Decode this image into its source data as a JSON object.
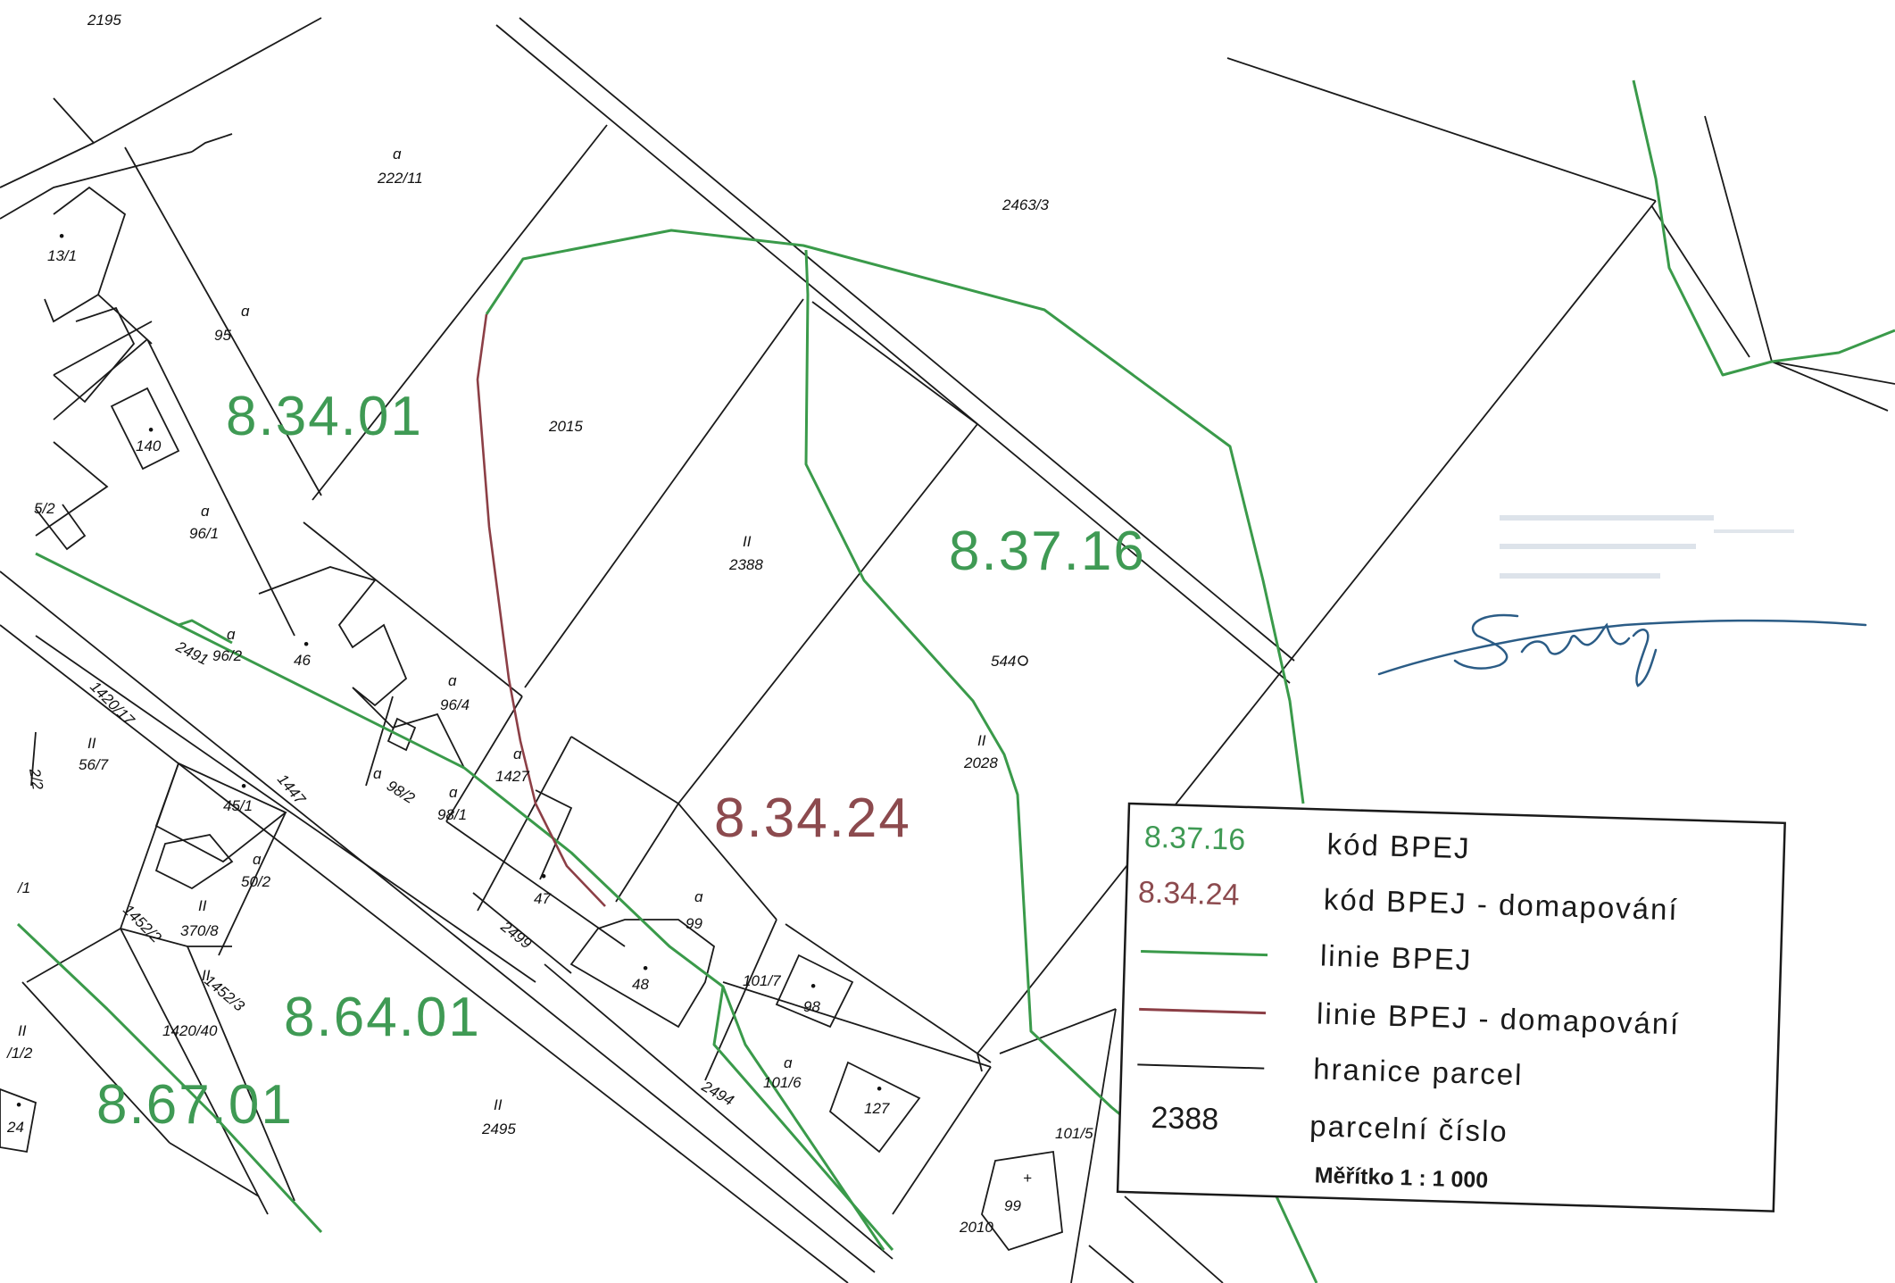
{
  "parcels": [
    {
      "id": "p2195",
      "label": "2195",
      "symbol": ""
    },
    {
      "id": "p222_11",
      "label": "222/11",
      "symbol": "ɑ"
    },
    {
      "id": "p2463_3",
      "label": "2463/3",
      "symbol": ""
    },
    {
      "id": "p13_1",
      "label": "13/1",
      "symbol": "•"
    },
    {
      "id": "p95",
      "label": "95",
      "symbol": "ɑ"
    },
    {
      "id": "p140",
      "label": "140",
      "symbol": "•"
    },
    {
      "id": "p2015",
      "label": "2015",
      "symbol": ""
    },
    {
      "id": "p96_1",
      "label": "96/1",
      "symbol": "ɑ"
    },
    {
      "id": "p2388",
      "label": "2388",
      "symbol": "II"
    },
    {
      "id": "p46",
      "label": "46",
      "symbol": "•"
    },
    {
      "id": "p96_2",
      "label": "96/2",
      "symbol": "ɑ"
    },
    {
      "id": "p96_4",
      "label": "96/4",
      "symbol": "ɑ"
    },
    {
      "id": "p1427",
      "label": "1427",
      "symbol": "ɑ"
    },
    {
      "id": "p2491",
      "label": "2491",
      "symbol": ""
    },
    {
      "id": "p1420_17",
      "label": "1420/17",
      "symbol": ""
    },
    {
      "id": "p56_7",
      "label": "56/7",
      "symbol": "II"
    },
    {
      "id": "p1447",
      "label": "1447",
      "symbol": ""
    },
    {
      "id": "p45_1",
      "label": "45/1",
      "symbol": "•"
    },
    {
      "id": "p98_2",
      "label": "98/2",
      "symbol": "ɑ"
    },
    {
      "id": "p98_1",
      "label": "98/1",
      "symbol": "ɑ"
    },
    {
      "id": "p2028",
      "label": "2028",
      "symbol": "II"
    },
    {
      "id": "p544",
      "label": "544",
      "symbol": ""
    },
    {
      "id": "p50_2",
      "label": "50/2",
      "symbol": "ɑ"
    },
    {
      "id": "p47",
      "label": "47",
      "symbol": "•"
    },
    {
      "id": "p99",
      "label": "99",
      "symbol": "ɑ"
    },
    {
      "id": "p370_8",
      "label": "370/8",
      "symbol": "II"
    },
    {
      "id": "p1452_2",
      "label": "1452/2",
      "symbol": ""
    },
    {
      "id": "p2499",
      "label": "2499",
      "symbol": ""
    },
    {
      "id": "p48",
      "label": "48",
      "symbol": "•"
    },
    {
      "id": "p101_7",
      "label": "101/7",
      "symbol": ""
    },
    {
      "id": "p98b",
      "label": "98",
      "symbol": "•"
    },
    {
      "id": "p1452_3",
      "label": "1452/3",
      "symbol": "II"
    },
    {
      "id": "p1420_40",
      "label": "1420/40",
      "symbol": ""
    },
    {
      "id": "p101_6",
      "label": "101/6",
      "symbol": "ɑ"
    },
    {
      "id": "p127",
      "label": "127",
      "symbol": "•"
    },
    {
      "id": "p2495",
      "label": "2495",
      "symbol": "II"
    },
    {
      "id": "p2494",
      "label": "2494",
      "symbol": ""
    },
    {
      "id": "p101_5",
      "label": "101/5",
      "symbol": ""
    },
    {
      "id": "p99b",
      "label": "99",
      "symbol": "+"
    },
    {
      "id": "p2010",
      "label": "2010",
      "symbol": ""
    },
    {
      "id": "p1_2",
      "label": "/1/2",
      "symbol": "II"
    },
    {
      "id": "p24",
      "label": "24",
      "symbol": "•"
    },
    {
      "id": "p5_2",
      "label": "5/2",
      "symbol": ""
    },
    {
      "id": "p1",
      "label": "/1",
      "symbol": ""
    },
    {
      "id": "p22_2",
      "label": "2/2",
      "symbol": ""
    }
  ],
  "bpej_codes": [
    {
      "id": "c1",
      "code": "8.34.01",
      "type": "standard"
    },
    {
      "id": "c2",
      "code": "8.37.16",
      "type": "standard"
    },
    {
      "id": "c3",
      "code": "8.34.24",
      "type": "domapovani"
    },
    {
      "id": "c4",
      "code": "8.64.01",
      "type": "standard"
    },
    {
      "id": "c5",
      "code": "8.67.01",
      "type": "standard"
    }
  ],
  "legend": {
    "rows": [
      {
        "sample": "8.37.16",
        "sample_kind": "code-green",
        "text": "kód BPEJ"
      },
      {
        "sample": "8.34.24",
        "sample_kind": "code-red",
        "text": "kód BPEJ - domapování"
      },
      {
        "sample": "",
        "sample_kind": "line-green",
        "text": "linie BPEJ"
      },
      {
        "sample": "",
        "sample_kind": "line-red",
        "text": "linie BPEJ - domapování"
      },
      {
        "sample": "",
        "sample_kind": "line-black",
        "text": "hranice parcel"
      },
      {
        "sample": "2388",
        "sample_kind": "number",
        "text": "parcelní číslo"
      }
    ],
    "scale": "Měřítko 1 : 1 000"
  },
  "colors": {
    "bpej_line": "#3a9a4a",
    "bpej_domapovani_line": "#8c3f46",
    "parcel_boundary": "#1a1a1a",
    "signature": "#2b5c86",
    "stamp": "#d8dee6"
  },
  "icons": {
    "stamp": "faded-office-stamp",
    "signature": "handwritten-signature"
  }
}
